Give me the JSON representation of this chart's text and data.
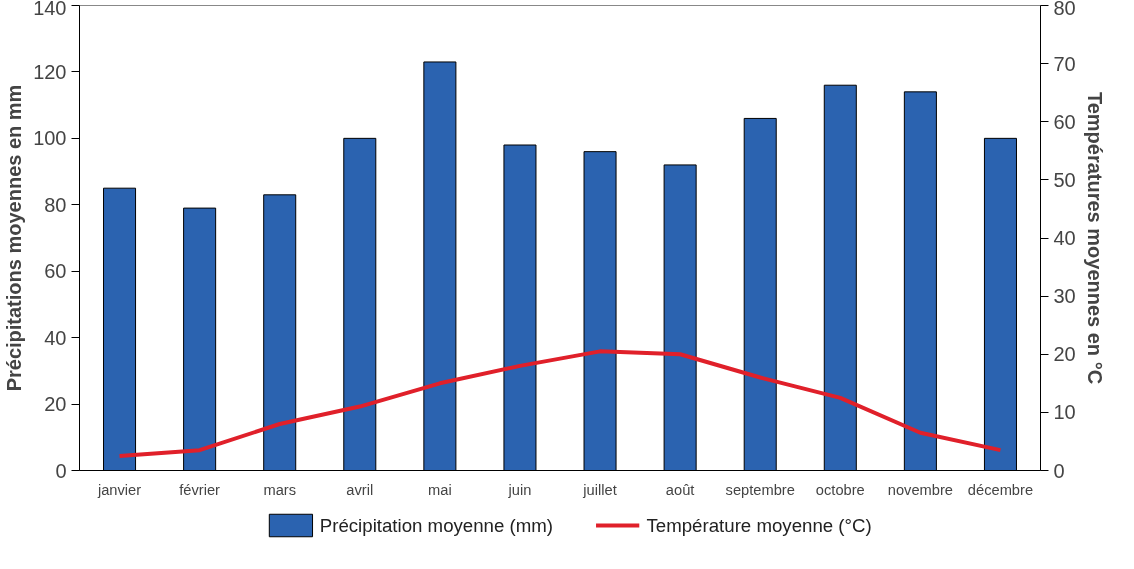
{
  "chart_data": {
    "type": "bar",
    "categories": [
      "janvier",
      "février",
      "mars",
      "avril",
      "mai",
      "juin",
      "juillet",
      "août",
      "septembre",
      "octobre",
      "novembre",
      "décembre"
    ],
    "series": [
      {
        "name": "Précipitation moyenne (mm)",
        "color": "#2b63b0",
        "values": [
          85,
          79,
          83,
          100,
          123,
          98,
          96,
          92,
          106,
          116,
          114,
          100
        ]
      },
      {
        "name": "Température moyenne (°C)",
        "type": "line",
        "axis": "y2",
        "color": "#e0202a",
        "values": [
          2.5,
          3.5,
          8,
          11,
          15,
          18,
          20.5,
          20,
          16,
          12.5,
          6.5,
          3.5
        ]
      }
    ],
    "ylabel": "Précipitations moyennes en mm",
    "y2label": "Températures moyennes en °C",
    "ylim": [
      0,
      140
    ],
    "yticks": [
      0,
      20,
      40,
      60,
      80,
      100,
      120,
      140
    ],
    "y2lim": [
      0,
      80
    ],
    "y2ticks": [
      0,
      10,
      20,
      30,
      40,
      50,
      60,
      70,
      80
    ],
    "grid": false,
    "legend": "bottom",
    "line_style": "solid",
    "marker": "none"
  }
}
